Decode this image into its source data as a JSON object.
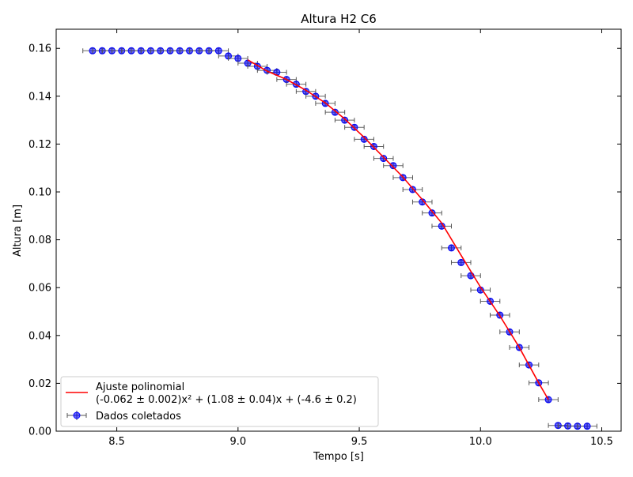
{
  "chart_data": {
    "type": "scatter",
    "title": "Altura H2 C6",
    "xlabel": "Tempo [s]",
    "ylabel": "Altura [m]",
    "xlim": [
      8.25,
      10.58
    ],
    "ylim": [
      0.0,
      0.168
    ],
    "x_ticks": [
      8.5,
      9.0,
      9.5,
      10.0,
      10.5
    ],
    "x_tick_labels": [
      "8.5",
      "9.0",
      "9.5",
      "10.0",
      "10.5"
    ],
    "y_ticks": [
      0.0,
      0.02,
      0.04,
      0.06,
      0.08,
      0.1,
      0.12,
      0.14,
      0.16
    ],
    "y_tick_labels": [
      "0.00",
      "0.02",
      "0.04",
      "0.06",
      "0.08",
      "0.10",
      "0.12",
      "0.14",
      "0.16"
    ],
    "grid": false,
    "legend_position": "bottom-left",
    "legend": [
      {
        "label_line1": "Ajuste polinomial",
        "label_line2": "(-0.062 ± 0.002)x² + (1.08 ± 0.04)x + (-4.6 ± 0.2)",
        "color": "#ff0000",
        "kind": "line"
      },
      {
        "label_line1": "Dados coletados",
        "label_line2": "",
        "color": "#0000ff",
        "kind": "errorbar"
      }
    ],
    "series": [
      {
        "name": "Dados coletados",
        "color": "#0000ff",
        "x_error": 0.04,
        "y_error": 0.001,
        "points": [
          [
            8.4,
            0.159
          ],
          [
            8.44,
            0.159
          ],
          [
            8.48,
            0.159
          ],
          [
            8.52,
            0.159
          ],
          [
            8.56,
            0.159
          ],
          [
            8.6,
            0.159
          ],
          [
            8.64,
            0.159
          ],
          [
            8.68,
            0.159
          ],
          [
            8.72,
            0.159
          ],
          [
            8.76,
            0.159
          ],
          [
            8.8,
            0.159
          ],
          [
            8.84,
            0.159
          ],
          [
            8.88,
            0.159
          ],
          [
            8.92,
            0.159
          ],
          [
            8.96,
            0.1568
          ],
          [
            9.0,
            0.1558
          ],
          [
            9.04,
            0.1538
          ],
          [
            9.08,
            0.1525
          ],
          [
            9.12,
            0.1508
          ],
          [
            9.16,
            0.15
          ],
          [
            9.2,
            0.147
          ],
          [
            9.24,
            0.145
          ],
          [
            9.28,
            0.142
          ],
          [
            9.32,
            0.14
          ],
          [
            9.36,
            0.137
          ],
          [
            9.4,
            0.1333
          ],
          [
            9.44,
            0.13
          ],
          [
            9.48,
            0.127
          ],
          [
            9.52,
            0.122
          ],
          [
            9.56,
            0.119
          ],
          [
            9.6,
            0.114
          ],
          [
            9.64,
            0.111
          ],
          [
            9.68,
            0.106
          ],
          [
            9.72,
            0.101
          ],
          [
            9.76,
            0.0958
          ],
          [
            9.8,
            0.0912
          ],
          [
            9.84,
            0.0857
          ],
          [
            9.88,
            0.0766
          ],
          [
            9.92,
            0.0705
          ],
          [
            9.96,
            0.065
          ],
          [
            10.0,
            0.059
          ],
          [
            10.04,
            0.0543
          ],
          [
            10.08,
            0.0485
          ],
          [
            10.12,
            0.0415
          ],
          [
            10.16,
            0.035
          ],
          [
            10.2,
            0.0277
          ],
          [
            10.24,
            0.0202
          ],
          [
            10.28,
            0.0132
          ],
          [
            10.32,
            0.0024
          ],
          [
            10.36,
            0.0022
          ],
          [
            10.4,
            0.0021
          ],
          [
            10.44,
            0.0021
          ]
        ]
      }
    ],
    "fit": {
      "name": "Ajuste polinomial",
      "color": "#ff0000",
      "x": [
        9.04,
        9.12,
        9.2,
        9.28,
        9.36,
        9.44,
        9.52,
        9.6,
        9.68,
        9.76,
        9.84,
        9.92,
        10.0,
        10.08,
        10.16,
        10.24,
        10.28
      ],
      "y": [
        0.1552,
        0.1505,
        0.147,
        0.1425,
        0.1372,
        0.1305,
        0.1228,
        0.1145,
        0.1062,
        0.0968,
        0.087,
        0.0735,
        0.0602,
        0.0482,
        0.035,
        0.0202,
        0.0132
      ]
    }
  }
}
